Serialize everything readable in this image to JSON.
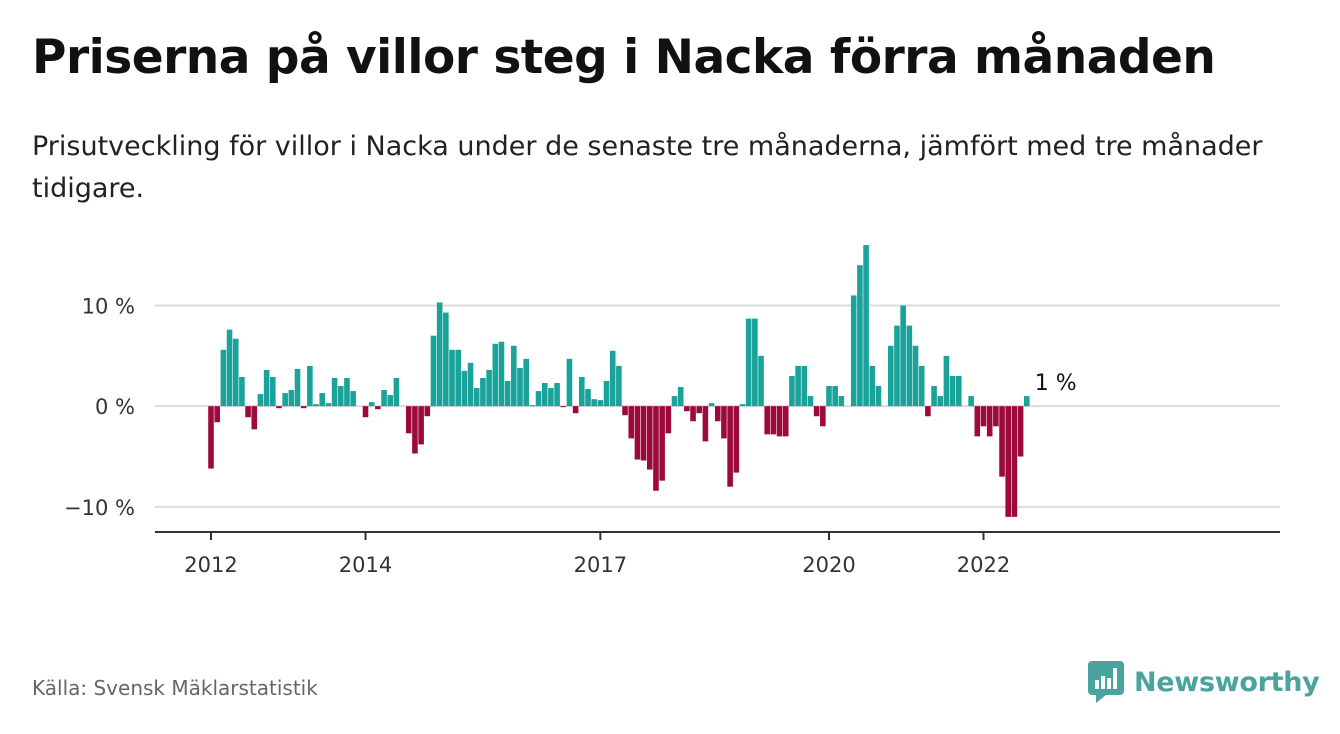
{
  "title": "Priserna på villor steg i Nacka förra månaden",
  "subtitle": "Prisutveckling för villor i Nacka under de senaste tre månaderna, jämfört med tre månader tidigare.",
  "source": "Källa: Svensk Mäklarstatistik",
  "brand": {
    "name": "Newsworthy",
    "icon": "newsworthy-logo-icon",
    "color": "#4aa39c"
  },
  "chart_data": {
    "type": "bar",
    "ylabel": "",
    "xlabel": "",
    "ylim": [
      -12.5,
      17.5
    ],
    "y_ticks": [
      {
        "value": 10,
        "label": "10 %"
      },
      {
        "value": 0,
        "label": "0 %"
      },
      {
        "value": -10,
        "label": "−10 %"
      }
    ],
    "x_ticks": [
      {
        "index": 0,
        "label": "2012"
      },
      {
        "index": 25,
        "label": "2014"
      },
      {
        "index": 63,
        "label": "2017"
      },
      {
        "index": 100,
        "label": "2020"
      },
      {
        "index": 125,
        "label": "2022"
      }
    ],
    "grid": true,
    "colors": {
      "positive": "#1aa39b",
      "negative": "#9c0a3c",
      "grid": "#dcdcdc",
      "axis": "#333333"
    },
    "annotation": {
      "index": 137,
      "label": "1 %"
    },
    "values": [
      -6.2,
      -1.6,
      5.6,
      7.6,
      6.7,
      2.9,
      -1.1,
      -2.3,
      1.2,
      3.6,
      2.9,
      -0.2,
      1.3,
      1.6,
      3.7,
      -0.2,
      4.0,
      0.2,
      1.3,
      0.3,
      2.8,
      2.0,
      2.8,
      1.5,
      0,
      -1.1,
      0.4,
      -0.3,
      1.6,
      1.1,
      2.8,
      0,
      -2.7,
      -4.7,
      -3.8,
      -1.0,
      7.0,
      10.3,
      9.3,
      5.6,
      5.6,
      3.5,
      4.3,
      1.8,
      2.8,
      3.6,
      6.2,
      6.4,
      2.5,
      6.0,
      3.8,
      4.7,
      0.1,
      1.5,
      2.3,
      1.8,
      2.3,
      -0.1,
      4.7,
      -0.7,
      2.9,
      1.7,
      0.7,
      0.6,
      2.5,
      5.5,
      4.0,
      -0.9,
      -3.2,
      -5.3,
      -5.4,
      -6.3,
      -8.4,
      -7.4,
      -2.7,
      1.0,
      1.9,
      -0.5,
      -1.5,
      -0.7,
      -3.5,
      0.3,
      -1.5,
      -3.2,
      -8.0,
      -6.6,
      0.2,
      8.7,
      8.7,
      5.0,
      -2.8,
      -2.8,
      -3.0,
      -3.0,
      3.0,
      4.0,
      4.0,
      1.0,
      -1.0,
      -2.0,
      2.0,
      2.0,
      1.0,
      0,
      11.0,
      14.0,
      16.0,
      4.0,
      2.0,
      0,
      6.0,
      8.0,
      10.0,
      8.0,
      6.0,
      4.0,
      -1.0,
      2.0,
      1.0,
      5.0,
      3.0,
      3.0,
      0,
      1.0,
      -3.0,
      -2.0,
      -3.0,
      -2.0,
      -7.0,
      -11.0,
      -11.0,
      -5.0,
      1.0
    ]
  }
}
